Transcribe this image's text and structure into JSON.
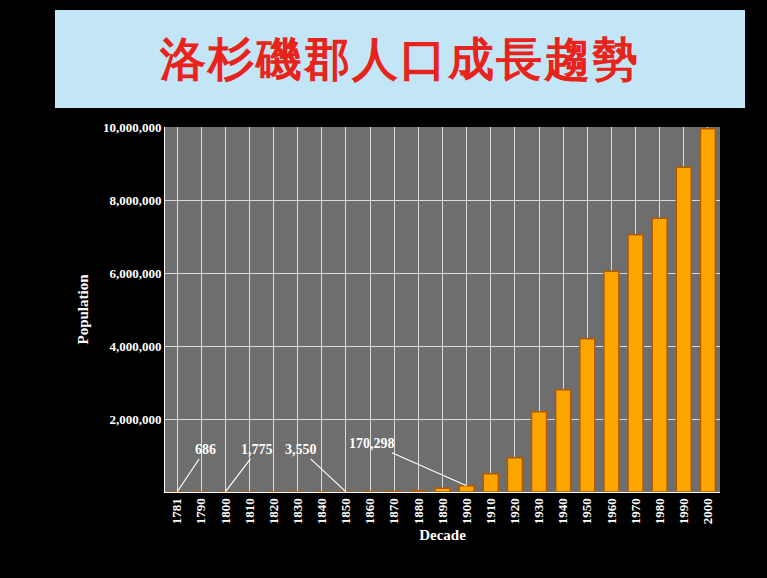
{
  "chart_data": {
    "type": "bar",
    "title": "洛杉磯郡人口成長趨勢",
    "x_label": "Decade",
    "y_label": "Population",
    "categories": [
      "1781",
      "1790",
      "1800",
      "1810",
      "1820",
      "1830",
      "1840",
      "1850",
      "1860",
      "1870",
      "1880",
      "1890",
      "1900",
      "1910",
      "1920",
      "1930",
      "1940",
      "1950",
      "1960",
      "1970",
      "1980",
      "1990",
      "2000"
    ],
    "values": [
      686,
      1000,
      1775,
      2000,
      2500,
      2800,
      3000,
      3550,
      11000,
      15000,
      33000,
      100000,
      170298,
      500000,
      940000,
      2200000,
      2800000,
      4200000,
      6050000,
      7050000,
      7500000,
      8900000,
      9950000
    ],
    "color": "#ffa500",
    "ylim": [
      0,
      10000000
    ],
    "yticks": [
      {
        "value": 2000000,
        "label": "2,000,000"
      },
      {
        "value": 4000000,
        "label": "4,000,000"
      },
      {
        "value": 6000000,
        "label": "6,000,000"
      },
      {
        "value": 8000000,
        "label": "8,000,000"
      },
      {
        "value": 10000000,
        "label": "10,000,000"
      }
    ],
    "grid": true,
    "annotations": [
      {
        "category": "1781",
        "value": 686,
        "label": "686"
      },
      {
        "category": "1800",
        "value": 1775,
        "label": "1,775"
      },
      {
        "category": "1850",
        "value": 3550,
        "label": "3,550"
      },
      {
        "category": "1900",
        "value": 170298,
        "label": "170,298"
      }
    ]
  }
}
